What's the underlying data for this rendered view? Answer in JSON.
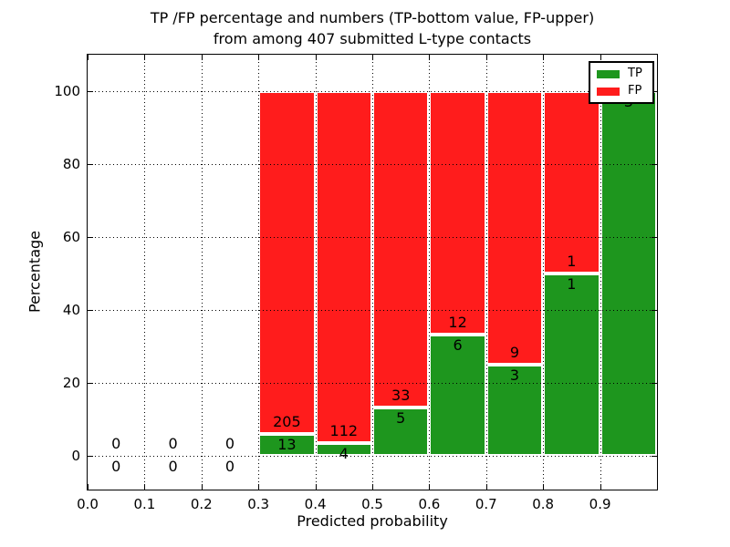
{
  "figure": {
    "title_line1": "TP /FP percentage and numbers (TP-bottom value, FP-upper)",
    "title_line2": "from among 407 submitted L-type contacts",
    "xlabel": "Predicted probability",
    "ylabel": "Percentage"
  },
  "legend": {
    "items": [
      {
        "label": "TP",
        "color": "#1e961e"
      },
      {
        "label": "FP",
        "color": "#ff1c1c"
      }
    ]
  },
  "colors": {
    "tp_bar": "#1e961e",
    "fp_bar": "#ff1c1c",
    "bar_edge": "#ffffff",
    "grid": "#000000",
    "axis": "#000000"
  },
  "chart_data": {
    "type": "bar",
    "stacked": true,
    "title": "TP /FP percentage and numbers (TP-bottom value, FP-upper) from among 407 submitted L-type contacts",
    "xlabel": "Predicted probability",
    "ylabel": "Percentage",
    "xlim": [
      0.0,
      1.0
    ],
    "ylim": [
      -9.25,
      110
    ],
    "x_ticks": [
      "0.0",
      "0.1",
      "0.2",
      "0.3",
      "0.4",
      "0.5",
      "0.6",
      "0.7",
      "0.8",
      "0.9"
    ],
    "y_ticks": [
      0,
      20,
      40,
      60,
      80,
      100
    ],
    "grid": true,
    "legend_position": "upper right",
    "total_submitted": 407,
    "series": [
      {
        "name": "TP",
        "counts": [
          0,
          0,
          0,
          13,
          4,
          5,
          6,
          3,
          1,
          3
        ],
        "pct": [
          0,
          0,
          0,
          5.96,
          3.45,
          13.16,
          33.33,
          25,
          50,
          100
        ]
      },
      {
        "name": "FP",
        "counts": [
          0,
          0,
          0,
          205,
          112,
          33,
          12,
          9,
          1,
          0
        ],
        "pct": [
          0,
          0,
          0,
          94.04,
          96.55,
          86.84,
          66.67,
          75,
          50,
          0
        ]
      }
    ],
    "bins": [
      {
        "range": "0.0-0.1",
        "tp": 0,
        "fp": 0,
        "tp_pct": 0,
        "fp_pct": 0,
        "fp_label": "0",
        "tp_label": "0"
      },
      {
        "range": "0.1-0.2",
        "tp": 0,
        "fp": 0,
        "tp_pct": 0,
        "fp_pct": 0,
        "fp_label": "0",
        "tp_label": "0"
      },
      {
        "range": "0.2-0.3",
        "tp": 0,
        "fp": 0,
        "tp_pct": 0,
        "fp_pct": 0,
        "fp_label": "0",
        "tp_label": "0"
      },
      {
        "range": "0.3-0.4",
        "tp": 13,
        "fp": 205,
        "tp_pct": 5.96,
        "fp_pct": 94.04,
        "fp_label": "205",
        "tp_label": "13"
      },
      {
        "range": "0.4-0.5",
        "tp": 4,
        "fp": 112,
        "tp_pct": 3.45,
        "fp_pct": 96.55,
        "fp_label": "112",
        "tp_label": "4"
      },
      {
        "range": "0.5-0.6",
        "tp": 5,
        "fp": 33,
        "tp_pct": 13.16,
        "fp_pct": 86.84,
        "fp_label": "33",
        "tp_label": "5"
      },
      {
        "range": "0.6-0.7",
        "tp": 6,
        "fp": 12,
        "tp_pct": 33.33,
        "fp_pct": 66.67,
        "fp_label": "12",
        "tp_label": "6"
      },
      {
        "range": "0.7-0.8",
        "tp": 3,
        "fp": 9,
        "tp_pct": 25,
        "fp_pct": 75,
        "fp_label": "9",
        "tp_label": "3"
      },
      {
        "range": "0.8-0.9",
        "tp": 1,
        "fp": 1,
        "tp_pct": 50,
        "fp_pct": 50,
        "fp_label": "1",
        "tp_label": "1"
      },
      {
        "range": "0.9-1.0",
        "tp": 3,
        "fp": 0,
        "tp_pct": 100,
        "fp_pct": 0,
        "fp_label": "",
        "tp_label": "3"
      }
    ]
  }
}
